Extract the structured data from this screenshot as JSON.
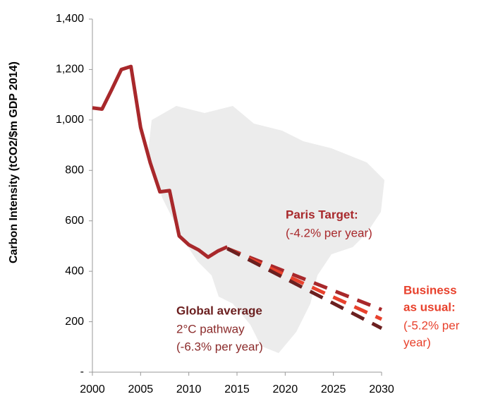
{
  "chart_data": {
    "type": "line",
    "y_label": "Carbon Intensity (tCO2/$m GDP 2014)",
    "xlim": [
      2000,
      2030
    ],
    "xticks": [
      2000,
      2005,
      2010,
      2015,
      2020,
      2025,
      2030
    ],
    "ylim": [
      0,
      1400
    ],
    "yticks": [
      {
        "value": 0,
        "label": "-"
      },
      200,
      400,
      600,
      800,
      {
        "value": 1000,
        "label": "1,000"
      },
      {
        "value": 1200,
        "label": "1,200"
      },
      {
        "value": 1400,
        "label": "1,400"
      }
    ],
    "series": [
      {
        "color": "#a8282b",
        "dashed": false,
        "x": [
          2000,
          2001,
          2002,
          2003,
          2004,
          2005,
          2006,
          2007,
          2008,
          2009,
          2010,
          2011,
          2012,
          2013,
          2014
        ],
        "values": [
          1048,
          1043,
          1120,
          1200,
          1212,
          970,
          830,
          715,
          720,
          540,
          505,
          485,
          456,
          480,
          497
        ]
      },
      {
        "color": "#a8282b",
        "dashed": true,
        "x": [
          2014,
          2030
        ],
        "values": [
          490,
          248
        ]
      },
      {
        "color": "#e8412c",
        "dashed": true,
        "x": [
          2014,
          2030
        ],
        "values": [
          490,
          210
        ]
      },
      {
        "color": "#6b1f1f",
        "dashed": true,
        "x": [
          2014,
          2030
        ],
        "values": [
          490,
          174
        ]
      }
    ],
    "annotations": [
      {
        "text": "Paris Target:",
        "color": "#a8282b",
        "bold": true
      },
      {
        "text": "(-4.2% per year)",
        "color": "#a8282b",
        "bold": false
      },
      {
        "text": "Business",
        "color": "#e8412c",
        "bold": true
      },
      {
        "text": "as usual:",
        "color": "#e8412c",
        "bold": true
      },
      {
        "text": "(-5.2% per",
        "color": "#e8412c",
        "bold": false
      },
      {
        "text": "year)",
        "color": "#e8412c",
        "bold": false
      },
      {
        "text": "Global average",
        "color": "#6b1f1f",
        "bold": true
      },
      {
        "text": "2°C pathway",
        "color": "#8b2b2b",
        "bold": false
      },
      {
        "text": "(-6.3% per year)",
        "color": "#8b2b2b",
        "bold": false
      }
    ]
  }
}
